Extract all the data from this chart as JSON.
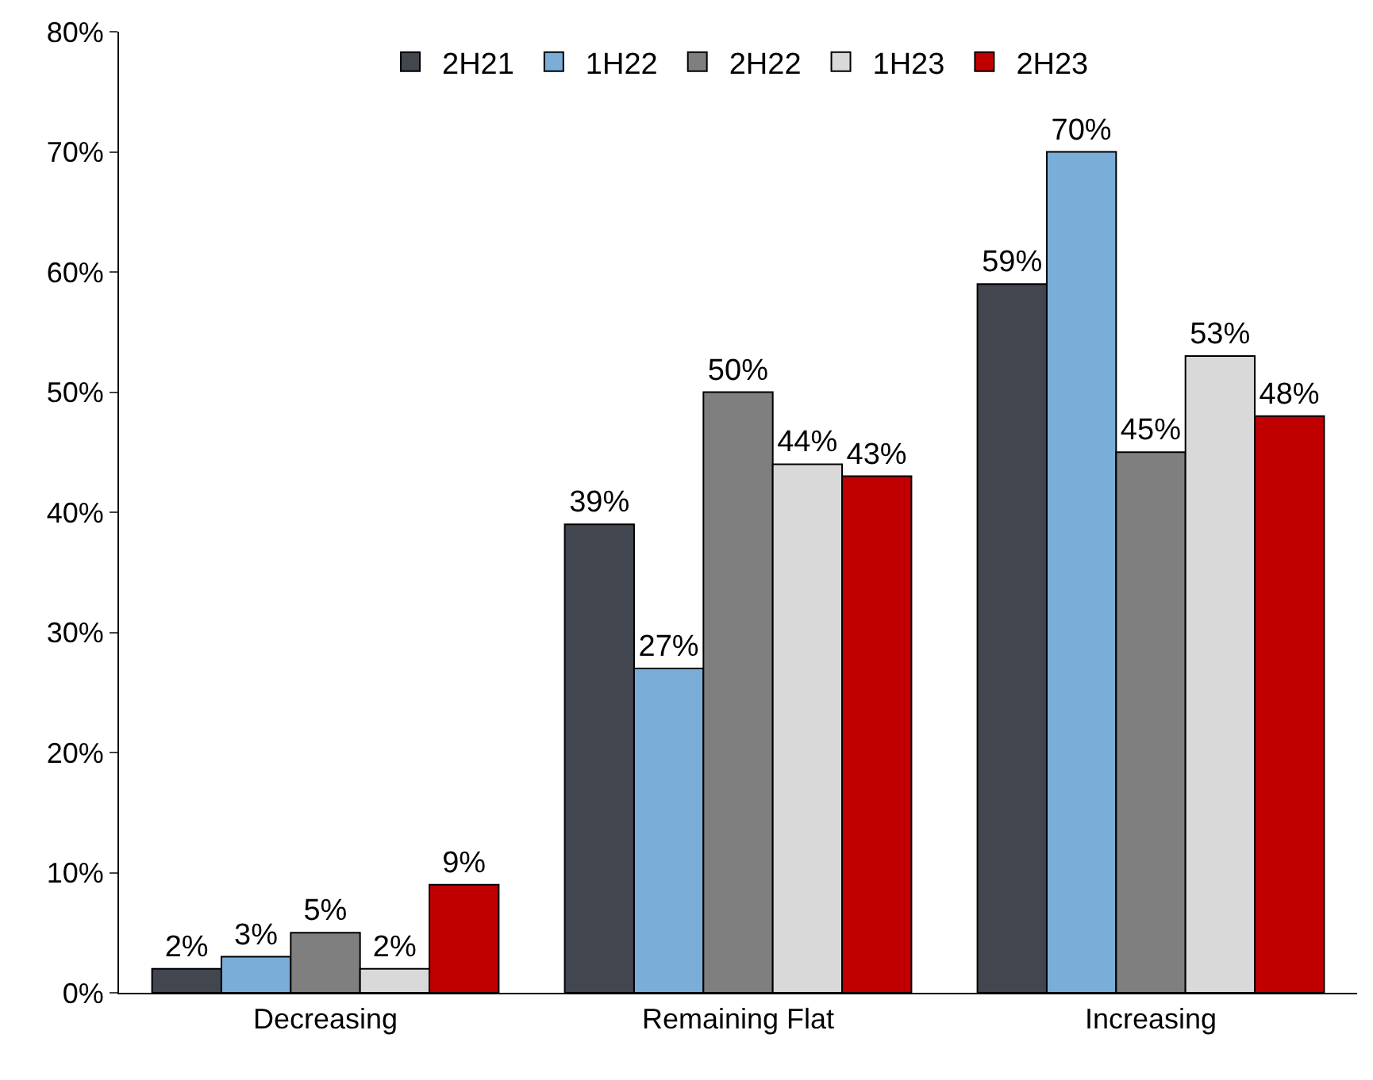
{
  "chart_data": {
    "type": "bar",
    "categories": [
      "Decreasing",
      "Remaining Flat",
      "Increasing"
    ],
    "series": [
      {
        "name": "2H21",
        "color": "#41464f",
        "values": [
          2,
          39,
          59
        ],
        "value_labels": [
          "2%",
          "39%",
          "59%"
        ]
      },
      {
        "name": "1H22",
        "color": "#7aaed8",
        "values": [
          3,
          27,
          70
        ],
        "value_labels": [
          "3%",
          "27%",
          "70%"
        ]
      },
      {
        "name": "2H22",
        "color": "#7f7f7f",
        "values": [
          5,
          50,
          45
        ],
        "value_labels": [
          "5%",
          "50%",
          "45%"
        ]
      },
      {
        "name": "1H23",
        "color": "#d9d9d9",
        "values": [
          2,
          44,
          53
        ],
        "value_labels": [
          "2%",
          "44%",
          "53%"
        ]
      },
      {
        "name": "2H23",
        "color": "#c00000",
        "values": [
          9,
          43,
          48
        ],
        "value_labels": [
          "9%",
          "43%",
          "48%"
        ]
      }
    ],
    "ylim": [
      0,
      80
    ],
    "yticks": [
      {
        "value": 0,
        "label": "0%"
      },
      {
        "value": 10,
        "label": "10%"
      },
      {
        "value": 20,
        "label": "20%"
      },
      {
        "value": 30,
        "label": "30%"
      },
      {
        "value": 40,
        "label": "40%"
      },
      {
        "value": 50,
        "label": "50%"
      },
      {
        "value": 60,
        "label": "60%"
      },
      {
        "value": 70,
        "label": "70%"
      },
      {
        "value": 80,
        "label": "80%"
      }
    ],
    "legend": "top"
  }
}
